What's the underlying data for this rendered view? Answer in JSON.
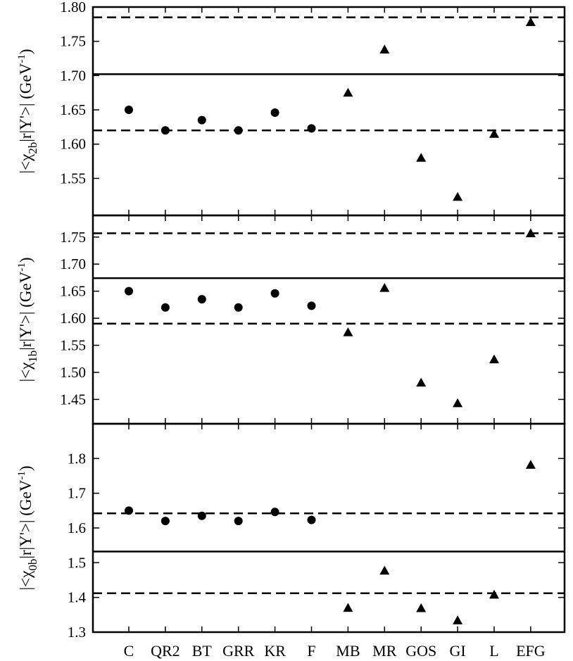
{
  "chart_data": [
    {
      "type": "scatter",
      "ylabel_parts": [
        "|<χ",
        "2b",
        "|r|Υ'>|  (GeV",
        "-1",
        ")"
      ],
      "ylim": [
        1.5,
        1.8
      ],
      "yticks": [
        "1.80",
        "1.75",
        "1.70",
        "1.65",
        "1.60",
        "1.55"
      ],
      "ytick_values": [
        1.8,
        1.75,
        1.7,
        1.65,
        1.6,
        1.55
      ],
      "solid_line": 1.702,
      "dashed_lines": [
        1.785,
        1.62
      ],
      "circles": [
        1.65,
        1.62,
        1.635,
        1.62,
        1.646,
        1.623
      ],
      "triangles": [
        1.675,
        1.738,
        1.58,
        1.523,
        1.615,
        1.778
      ]
    },
    {
      "type": "scatter",
      "ylabel_parts": [
        "|<χ",
        "1b",
        "|r|Υ'>|  (GeV",
        "-1",
        ")"
      ],
      "ylim": [
        1.4,
        1.78
      ],
      "yticks": [
        "1.75",
        "1.70",
        "1.65",
        "1.60",
        "1.55",
        "1.50",
        "1.45"
      ],
      "ytick_values": [
        1.75,
        1.7,
        1.65,
        1.6,
        1.55,
        1.5,
        1.45
      ],
      "solid_line": 1.674,
      "dashed_lines": [
        1.757,
        1.59
      ],
      "circles": [
        1.65,
        1.62,
        1.635,
        1.62,
        1.646,
        1.623
      ],
      "triangles": [
        1.574,
        1.656,
        1.481,
        1.443,
        1.524,
        1.757
      ]
    },
    {
      "type": "scatter",
      "ylabel_parts": [
        "|<χ",
        "0b",
        "|r|Υ'>|  (GeV",
        "-1",
        ")"
      ],
      "ylim": [
        1.3,
        1.9
      ],
      "yticks": [
        "1.8",
        "1.7",
        "1.6",
        "1.5",
        "1.4",
        "1.3"
      ],
      "ytick_values": [
        1.8,
        1.7,
        1.6,
        1.5,
        1.4,
        1.3
      ],
      "solid_line": 1.532,
      "dashed_lines": [
        1.642,
        1.412
      ],
      "circles": [
        1.65,
        1.62,
        1.635,
        1.62,
        1.646,
        1.623
      ],
      "triangles": [
        1.37,
        1.477,
        1.369,
        1.334,
        1.408,
        1.782
      ]
    }
  ],
  "categories": [
    "C",
    "QR2",
    "BT",
    "GRR",
    "KR",
    "F",
    "MB",
    "MR",
    "GOS",
    "GI",
    "L",
    "EFG"
  ]
}
